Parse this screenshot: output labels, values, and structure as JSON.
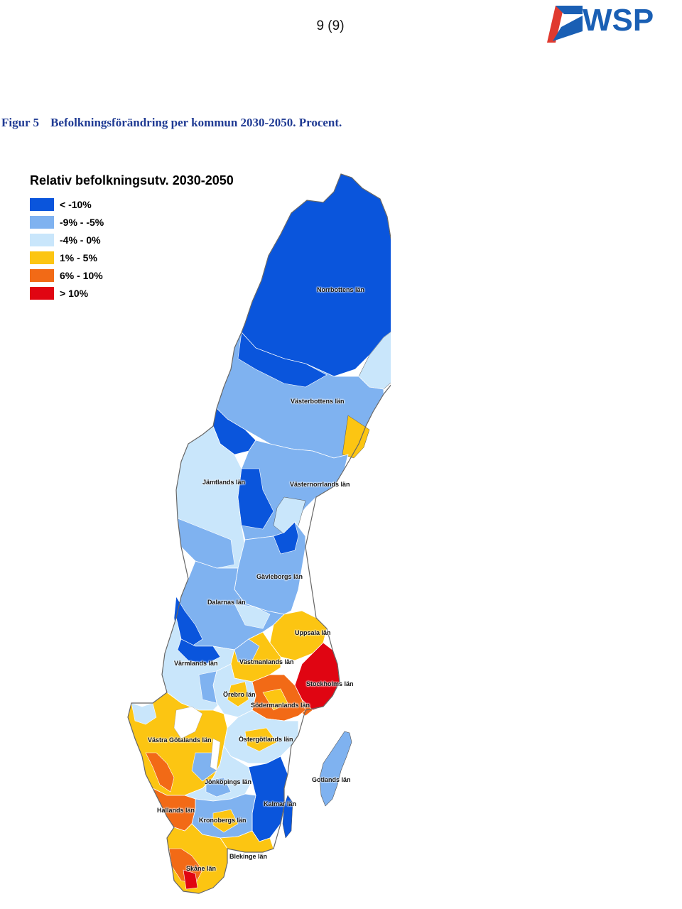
{
  "header": {
    "page_number": "9 (9)",
    "logo_text": "WSP",
    "brand_colors": {
      "blue": "#1a5fb4",
      "red": "#e03a2f"
    }
  },
  "caption": {
    "label": "Figur 5",
    "text": "Befolkningsförändring per kommun 2030-2050. Procent."
  },
  "legend": {
    "title": "Relativ befolkningsutv. 2030-2050",
    "items": [
      {
        "label": "< -10%",
        "color": "#0a55dc"
      },
      {
        "label": "-9% - -5%",
        "color": "#7fb2f0"
      },
      {
        "label": "-4% - 0%",
        "color": "#c9e6fb"
      },
      {
        "label": "1% - 5%",
        "color": "#fcc512"
      },
      {
        "label": "6% - 10%",
        "color": "#f26a16"
      },
      {
        "label": "> 10%",
        "color": "#e00512"
      }
    ]
  },
  "map": {
    "region_labels": [
      "Norrbottens län",
      "Västerbottens län",
      "Jämtlands län",
      "Västernorrlands län",
      "Gävleborgs län",
      "Dalarnas län",
      "Uppsala län",
      "Värmlands län",
      "Västmanlands län",
      "Stockholms län",
      "Örebro län",
      "Södermanlands län",
      "Västra Götalands län",
      "Östergötlands län",
      "Jönköpings län",
      "Gotlands län",
      "Kalmar län",
      "Hallands län",
      "Kronobergs län",
      "Blekinge län",
      "Skåne län"
    ]
  }
}
